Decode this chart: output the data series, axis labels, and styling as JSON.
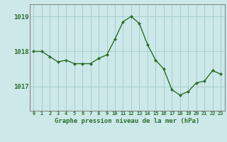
{
  "x": [
    0,
    1,
    2,
    3,
    4,
    5,
    6,
    7,
    8,
    9,
    10,
    11,
    12,
    13,
    14,
    15,
    16,
    17,
    18,
    19,
    20,
    21,
    22,
    23
  ],
  "y": [
    1018.0,
    1018.0,
    1017.85,
    1017.7,
    1017.75,
    1017.65,
    1017.65,
    1017.65,
    1017.8,
    1017.9,
    1018.35,
    1018.85,
    1019.0,
    1018.8,
    1018.2,
    1017.75,
    1017.5,
    1016.9,
    1016.75,
    1016.85,
    1017.1,
    1017.15,
    1017.45,
    1017.35
  ],
  "line_color": "#2d6e2d",
  "marker": "D",
  "marker_size": 2.0,
  "bg_color": "#cce8e8",
  "grid_color": "#a8cece",
  "axis_color": "#2d6e2d",
  "spine_color": "#888888",
  "title": "Graphe pression niveau de la mer (hPa)",
  "ylabel_ticks": [
    1017,
    1018,
    1019
  ],
  "ylim": [
    1016.3,
    1019.35
  ],
  "xlim": [
    -0.5,
    23.5
  ]
}
